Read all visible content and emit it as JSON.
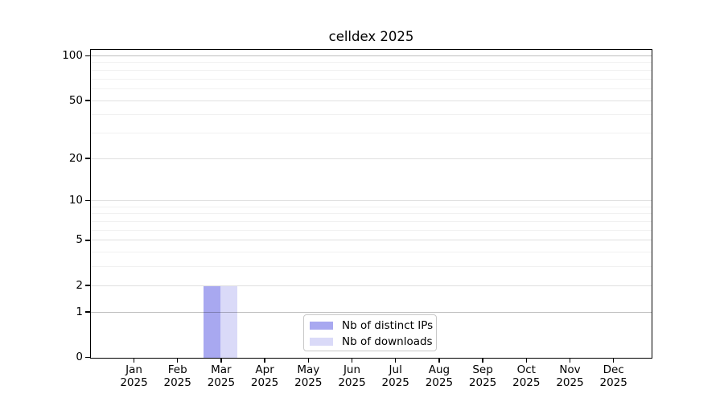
{
  "chart_data": {
    "type": "bar",
    "title": "celldex 2025",
    "categories": [
      "Jan",
      "Feb",
      "Mar",
      "Apr",
      "May",
      "Jun",
      "Jul",
      "Aug",
      "Sep",
      "Oct",
      "Nov",
      "Dec"
    ],
    "year_label": "2025",
    "series": [
      {
        "name": "Nb of distinct IPs",
        "color": "#a8a8f0",
        "values": [
          0,
          0,
          2,
          0,
          0,
          0,
          0,
          0,
          0,
          0,
          0,
          0
        ]
      },
      {
        "name": "Nb of downloads",
        "color": "#dadaf8",
        "values": [
          0,
          0,
          2,
          0,
          0,
          0,
          0,
          0,
          0,
          0,
          0,
          0
        ]
      }
    ],
    "xlabel": "",
    "ylabel": "",
    "y_scale": "log1p",
    "ylim": [
      0,
      105
    ],
    "y_ticks": [
      0,
      1,
      2,
      5,
      10,
      20,
      50,
      100
    ],
    "y_minor_ticks": [
      3,
      4,
      6,
      7,
      8,
      9,
      30,
      40,
      60,
      70,
      80,
      90
    ],
    "grid": "horizontal",
    "legend_position": "inside-bottom-center",
    "colors": {
      "axis": "#000000",
      "background": "#ffffff",
      "grid_strong": "#c0c0c0",
      "grid_major": "#dddddd",
      "grid_minor": "#f0f0f0"
    }
  }
}
